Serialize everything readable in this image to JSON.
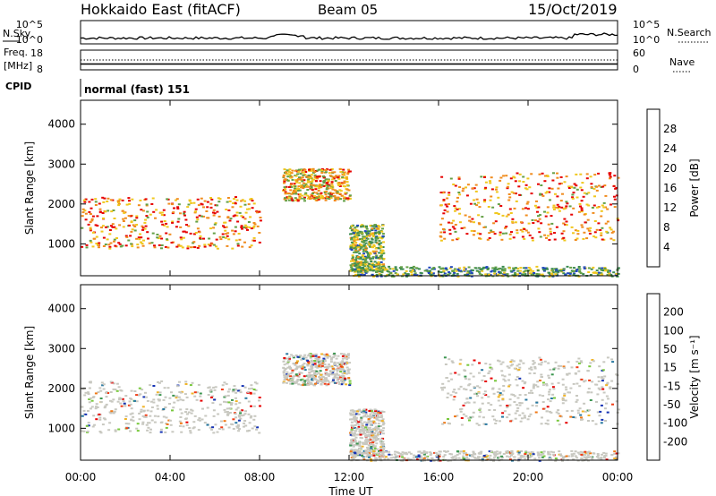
{
  "header": {
    "title": "Hokkaido East (fitACF)",
    "beam": "Beam 05",
    "date": "15/Oct/2019"
  },
  "top_panels": {
    "nsky_label": "N.Sky",
    "nsearch_label": "N.Search",
    "noise_ticks": [
      "10^5",
      "10^0"
    ],
    "freq_label": "Freq.",
    "freq_unit": "[MHz]",
    "freq_ticks": [
      "18",
      "8"
    ],
    "nave_label": "Nave",
    "nave_ticks": [
      "60",
      "0"
    ],
    "cpid_label": "CPID",
    "cpid_value": "normal (fast) 151"
  },
  "chart_data": [
    {
      "type": "heatmap",
      "name": "power",
      "ylabel": "Slant Range [km]",
      "yticks": [
        1000,
        2000,
        3000,
        4000
      ],
      "ylim": [
        200,
        4600
      ],
      "xlim": [
        0,
        24
      ],
      "colorbar_label": "Power [dB]",
      "colorbar_ticks": [
        "28",
        "24",
        "20",
        "16",
        "12",
        "8",
        "4"
      ],
      "colors": [
        "#0a0adc",
        "#1e46be",
        "#3c8c50",
        "#64a046",
        "#f0c81e",
        "#f08c1e",
        "#e60000"
      ],
      "colorbar_range": [
        0,
        32
      ]
    },
    {
      "type": "heatmap",
      "name": "velocity",
      "ylabel": "Slant Range [km]",
      "yticks": [
        1000,
        2000,
        3000,
        4000
      ],
      "ylim": [
        200,
        4600
      ],
      "xlim": [
        0,
        24
      ],
      "colorbar_label": "Velocity [m s⁻¹]",
      "colorbar_ticks": [
        "200",
        "100",
        "50",
        "15",
        "-15",
        "-50",
        "-100",
        "-200"
      ],
      "colors": [
        "#1432b4",
        "#2878a0",
        "#3c9650",
        "#78c83c",
        "#c8c8c0",
        "#f0b428",
        "#f07814",
        "#f03c14",
        "#e60000"
      ],
      "colorbar_range": [
        -250,
        250
      ]
    }
  ],
  "xaxis": {
    "label": "Time UT",
    "ticks": [
      "00:00",
      "04:00",
      "08:00",
      "12:00",
      "16:00",
      "20:00",
      "00:00"
    ]
  }
}
